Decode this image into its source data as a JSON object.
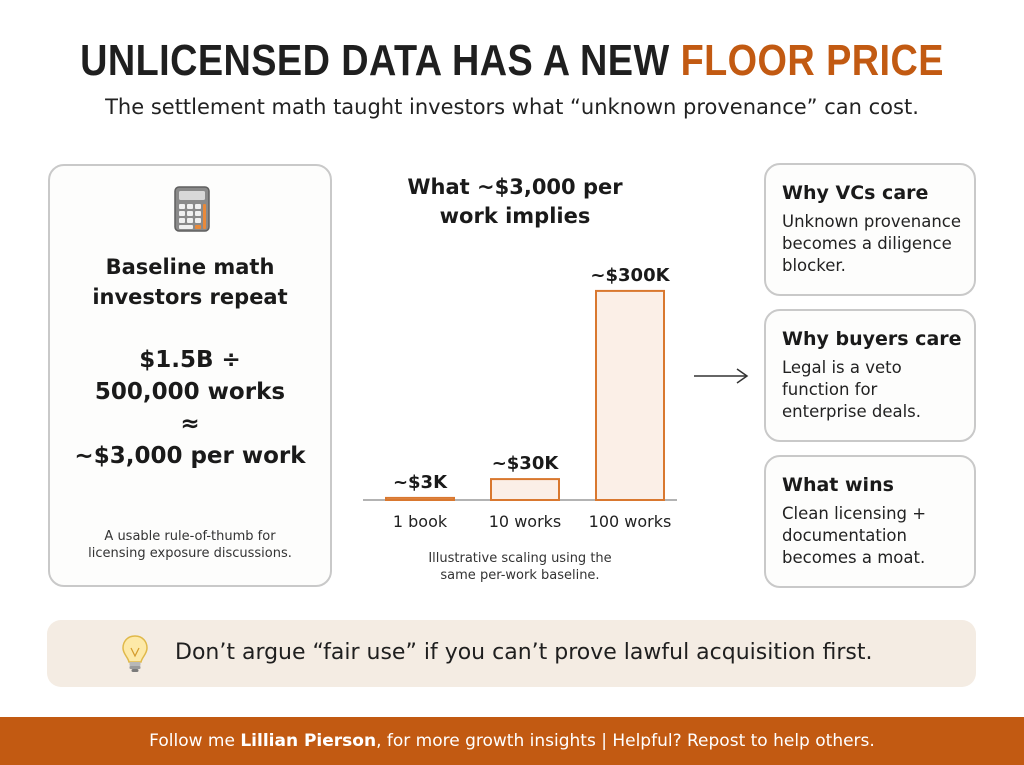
{
  "header": {
    "title_main": "UNLICENSED DATA HAS A NEW",
    "title_accent": "FLOOR PRICE",
    "subtitle": "The settlement math taught investors what “unknown provenance” can cost."
  },
  "baseline": {
    "icon": "calculator-icon",
    "heading_line1": "Baseline math",
    "heading_line2": "investors repeat",
    "formula_line1": "$1.5B ÷",
    "formula_line2": "500,000 works",
    "formula_line3": "≈",
    "formula_line4": "~$3,000 per work",
    "note_line1": "A usable rule-of-thumb for",
    "note_line2": "licensing exposure discussions."
  },
  "chart_data": {
    "type": "bar",
    "title_line1": "What ~$3,000 per",
    "title_line2": "work implies",
    "categories": [
      "1 book",
      "10 works",
      "100 works"
    ],
    "values": [
      3000,
      30000,
      300000
    ],
    "data_labels": [
      "~$3K",
      "~$30K",
      "~$300K"
    ],
    "ylim": [
      0,
      330000
    ],
    "grid": false,
    "caption_line1": "Illustrative scaling using the",
    "caption_line2": "same per-work baseline.",
    "bar_fill": "#fbefe7",
    "bar_stroke": "#d9782f"
  },
  "cards": [
    {
      "heading": "Why VCs care",
      "line1": "Unknown provenance",
      "line2": "becomes a diligence",
      "line3": "blocker."
    },
    {
      "heading": "Why buyers care",
      "line1": "Legal is a veto",
      "line2": "function for",
      "line3": "enterprise deals."
    },
    {
      "heading": "What wins",
      "line1": "Clean licensing +",
      "line2": "documentation",
      "line3": "becomes a moat."
    }
  ],
  "tip": {
    "icon": "lightbulb-icon",
    "text": "Don’t argue “fair use” if you can’t prove lawful acquisition first."
  },
  "footer": {
    "prefix": "Follow me ",
    "name": "Lillian Pierson",
    "suffix": ", for more growth insights | Helpful? Repost to help others."
  },
  "colors": {
    "accent": "#c25a12",
    "tip_background": "#f4ece3"
  }
}
